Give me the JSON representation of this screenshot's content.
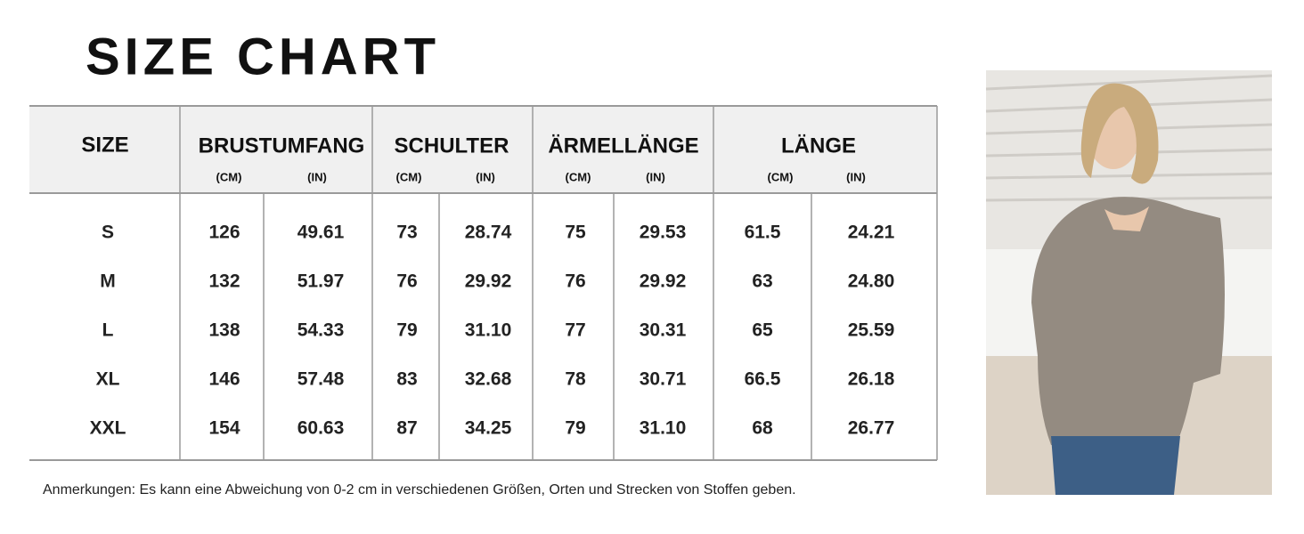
{
  "title": "SIZE CHART",
  "table": {
    "size_header": "SIZE",
    "groups": [
      {
        "label": "BRUSTUMFANG",
        "units": [
          "(CM)",
          "(IN)"
        ]
      },
      {
        "label": "SCHULTER",
        "units": [
          "(CM)",
          "(IN)"
        ]
      },
      {
        "label": "ÄRMELLÄNGE",
        "units": [
          "(CM)",
          "(IN)"
        ]
      },
      {
        "label": "LÄNGE",
        "units": [
          "(CM)",
          "(IN)"
        ]
      }
    ],
    "rows": [
      [
        "S",
        "126",
        "49.61",
        "73",
        "28.74",
        "75",
        "29.53",
        "61.5",
        "24.21"
      ],
      [
        "M",
        "132",
        "51.97",
        "76",
        "29.92",
        "76",
        "29.92",
        "63",
        "24.80"
      ],
      [
        "L",
        "138",
        "54.33",
        "79",
        "31.10",
        "77",
        "30.31",
        "65",
        "25.59"
      ],
      [
        "XL",
        "146",
        "57.48",
        "83",
        "32.68",
        "78",
        "30.71",
        "66.5",
        "26.18"
      ],
      [
        "XXL",
        "154",
        "60.63",
        "87",
        "34.25",
        "79",
        "31.10",
        "68",
        "26.77"
      ]
    ]
  },
  "note": "Anmerkungen: Es kann eine Abweichung von 0-2 cm in verschiedenen Größen, Orten und Strecken von Stoffen geben."
}
